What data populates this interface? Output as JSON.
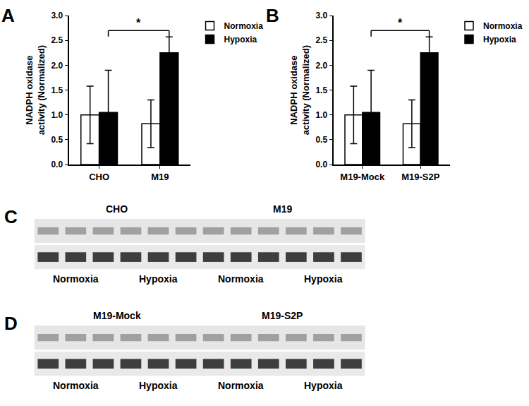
{
  "chart_data": [
    {
      "panel_label": "A",
      "type": "bar",
      "categories": [
        "CHO",
        "M19"
      ],
      "series": [
        {
          "name": "Normoxia",
          "color": "#ffffff",
          "values": [
            1.0,
            0.82
          ],
          "errors": [
            0.58,
            0.48
          ]
        },
        {
          "name": "Hypoxia",
          "color": "#000000",
          "values": [
            1.05,
            2.25
          ],
          "errors": [
            0.85,
            0.32
          ]
        }
      ],
      "ylabel": [
        "NADPH oxidase",
        "activity (Normalized)"
      ],
      "ylim": [
        0,
        3.0
      ],
      "yticks": [
        {
          "value": 0,
          "label": "0.0"
        },
        {
          "value": 0.5,
          "label": "0.5"
        },
        {
          "value": 1.0,
          "label": "1.0"
        },
        {
          "value": 1.5,
          "label": "1.5"
        },
        {
          "value": 2.0,
          "label": "2.0"
        },
        {
          "value": 2.5,
          "label": "2.5"
        },
        {
          "value": 3.0,
          "label": "3.0"
        }
      ],
      "grid": false,
      "legend": "right",
      "significance": {
        "text": "*",
        "between": [
          "CHO",
          "M19"
        ],
        "series": "Hypoxia"
      }
    },
    {
      "panel_label": "B",
      "type": "bar",
      "categories": [
        "M19-Mock",
        "M19-S2P"
      ],
      "series": [
        {
          "name": "Normoxia",
          "color": "#ffffff",
          "values": [
            1.0,
            0.82
          ],
          "errors": [
            0.58,
            0.48
          ]
        },
        {
          "name": "Hypoxia",
          "color": "#000000",
          "values": [
            1.05,
            2.25
          ],
          "errors": [
            0.85,
            0.32
          ]
        }
      ],
      "ylabel": [
        "NADPH oxidase",
        "activity (Normalized)"
      ],
      "ylim": [
        0,
        3.0
      ],
      "yticks": [
        {
          "value": 0,
          "label": "0.0"
        },
        {
          "value": 0.5,
          "label": "0.5"
        },
        {
          "value": 1.0,
          "label": "1.0"
        },
        {
          "value": 1.5,
          "label": "1.5"
        },
        {
          "value": 2.0,
          "label": "2.0"
        },
        {
          "value": 2.5,
          "label": "2.5"
        },
        {
          "value": 3.0,
          "label": "3.0"
        }
      ],
      "grid": false,
      "legend": "right",
      "significance": {
        "text": "*",
        "between": [
          "M19-Mock",
          "M19-S2P"
        ],
        "series": "Hypoxia"
      }
    }
  ],
  "blots": [
    {
      "panel_label": "C",
      "groups": [
        "CHO",
        "M19"
      ],
      "conditions": [
        "Normoxia",
        "Hypoxia",
        "Normoxia",
        "Hypoxia"
      ]
    },
    {
      "panel_label": "D",
      "groups": [
        "M19-Mock",
        "M19-S2P"
      ],
      "conditions": [
        "Normoxia",
        "Hypoxia",
        "Normoxia",
        "Hypoxia"
      ]
    }
  ]
}
